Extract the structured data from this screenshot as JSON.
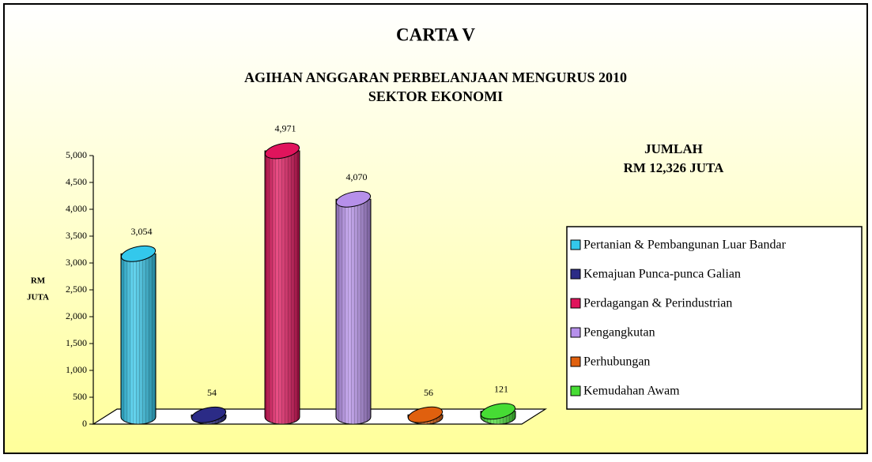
{
  "chart_data": {
    "type": "bar",
    "title": "CARTA V",
    "subtitle": [
      "AGIHAN ANGGARAN PERBELANJAAN MENGURUS 2010",
      "SEKTOR EKONOMI"
    ],
    "annotation": [
      "JUMLAH",
      "RM 12,326 JUTA"
    ],
    "ylabel": [
      "RM",
      "JUTA"
    ],
    "categories": [
      "Pertanian & Pembangunan Luar Bandar",
      "Kemajuan Punca-punca Galian",
      "Perdagangan & Perindustrian",
      "Pengangkutan",
      "Perhubungan",
      "Kemudahan Awam"
    ],
    "values": [
      3054,
      54,
      4971,
      4070,
      56,
      121
    ],
    "value_labels": [
      "3,054",
      "54",
      "4,971",
      "4,070",
      "56",
      "121"
    ],
    "colors": [
      "#33c8ec",
      "#2b2b86",
      "#e0145c",
      "#b690ea",
      "#e0600e",
      "#46dc34"
    ],
    "ylim": [
      0,
      5000
    ],
    "yticks": [
      0,
      500,
      {
        "value": 1000,
        "label": "1,000"
      },
      {
        "value": 1500,
        "label": "1,500"
      },
      {
        "value": 2000,
        "label": "2,000"
      },
      {
        "value": 2500,
        "label": "2,500"
      },
      {
        "value": 3000,
        "label": "3,000"
      },
      {
        "value": 3500,
        "label": "3,500"
      },
      {
        "value": 4000,
        "label": "4,000"
      },
      {
        "value": 4500,
        "label": "4,500"
      },
      {
        "value": 5000,
        "label": "5,000"
      }
    ],
    "legend": "right"
  }
}
